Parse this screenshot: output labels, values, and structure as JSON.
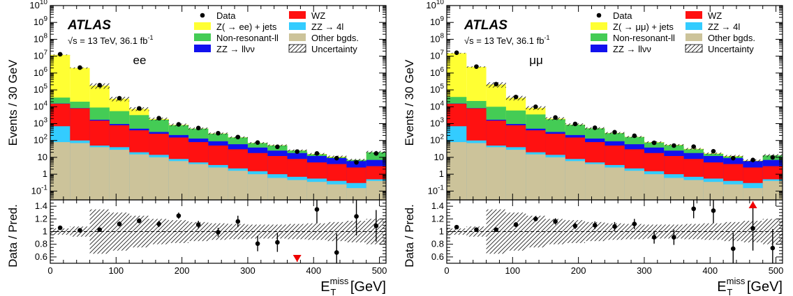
{
  "figure": {
    "atlas_label": "ATLAS",
    "energy_text": "√s = 13 TeV,  36.1 fb",
    "energy_sup": "-1",
    "ylabel_top": "Events / 30 GeV",
    "ylabel_bottom": "Data / Pred.",
    "xlabel_main": "E",
    "xlabel_sup": "miss",
    "xlabel_sub": "T",
    "xlabel_unit": " [GeV]",
    "x_ticks": [
      "0",
      "100",
      "200",
      "300",
      "400",
      "500"
    ],
    "y_ticks_top": [
      {
        "mant": "10",
        "exp": "-1",
        "v": -1
      },
      {
        "mant": "1",
        "exp": "",
        "v": 0
      },
      {
        "mant": "10",
        "exp": "",
        "v": 1
      },
      {
        "mant": "10",
        "exp": "2",
        "v": 2
      },
      {
        "mant": "10",
        "exp": "3",
        "v": 3
      },
      {
        "mant": "10",
        "exp": "4",
        "v": 4
      },
      {
        "mant": "10",
        "exp": "5",
        "v": 5
      },
      {
        "mant": "10",
        "exp": "6",
        "v": 6
      },
      {
        "mant": "10",
        "exp": "7",
        "v": 7
      },
      {
        "mant": "10",
        "exp": "8",
        "v": 8
      },
      {
        "mant": "10",
        "exp": "9",
        "v": 9
      },
      {
        "mant": "10",
        "exp": "10",
        "v": 10
      }
    ],
    "y_ticks_ratio": [
      "0.6",
      "0.8",
      "1",
      "1.2",
      "1.4"
    ],
    "colors": {
      "zjets": "#ffff33",
      "nonres": "#44cc55",
      "zzllvv": "#1111ee",
      "wz": "#ff1111",
      "zz4l": "#33ccff",
      "other": "#ccc39a"
    },
    "legend_shared": {
      "data": "Data",
      "wz": "WZ",
      "zz4l": "ZZ → 4l",
      "nonres": "Non-resonant-ll",
      "other": "Other bgds.",
      "zzllvv": "ZZ → llνν",
      "unc": "Uncertainty"
    }
  },
  "chart_data": [
    {
      "type": "bar",
      "channel": "ee",
      "legend_zjets": "Z( → ee) + jets",
      "title": "",
      "xlabel": "E_T^miss [GeV]",
      "ylabel": "Events / 30 GeV",
      "ylog": true,
      "xlim": [
        0,
        510
      ],
      "ylim": [
        0.03,
        10000000000
      ],
      "bin_edges": [
        0,
        30,
        60,
        90,
        120,
        150,
        180,
        210,
        240,
        270,
        300,
        330,
        360,
        390,
        420,
        450,
        480,
        510
      ],
      "series": [
        {
          "name": "Other bgds.",
          "color_key": "other",
          "values": [
            80,
            70,
            40,
            28,
            15,
            10,
            6,
            4,
            2.5,
            1.6,
            1.0,
            0.6,
            0.45,
            0.35,
            0.25,
            0.15,
            0.4
          ]
        },
        {
          "name": "ZZ → 4l",
          "color_key": "zz4l",
          "values": [
            700,
            100,
            50,
            40,
            20,
            14,
            8,
            5,
            3.5,
            2.2,
            1.5,
            1.0,
            0.7,
            0.55,
            0.4,
            0.3,
            0.5
          ]
        },
        {
          "name": "WZ",
          "color_key": "wz",
          "values": [
            15000,
            8000,
            1500,
            800,
            400,
            250,
            150,
            80,
            50,
            30,
            18,
            12,
            8,
            5,
            4,
            2.5,
            3
          ]
        },
        {
          "name": "ZZ → llνν",
          "color_key": "zzllvv",
          "values": [
            15500,
            8300,
            1700,
            950,
            500,
            320,
            210,
            130,
            90,
            60,
            38,
            25,
            18,
            12,
            9,
            6,
            7
          ]
        },
        {
          "name": "Non-resonant-ll",
          "color_key": "nonres",
          "values": [
            35000,
            20000,
            9000,
            5500,
            3200,
            1700,
            800,
            500,
            250,
            150,
            70,
            50,
            25,
            15,
            10,
            7,
            20
          ]
        },
        {
          "name": "Z( → ee) + jets",
          "color_key": "zjets",
          "values": [
            12000000,
            2000000,
            180000,
            30000,
            7500,
            1900,
            850,
            510,
            260,
            155,
            72,
            52,
            26,
            16,
            11,
            7,
            20
          ]
        }
      ],
      "data_points": [
        13000000,
        2100000,
        190000,
        32000,
        8000,
        2100,
        900,
        550,
        270,
        160,
        75,
        42,
        22,
        17,
        9,
        5,
        17
      ],
      "ratio": {
        "ylim": [
          0.5,
          1.5
        ],
        "values": [
          1.06,
          1.02,
          1.03,
          1.12,
          1.17,
          1.12,
          1.25,
          1.11,
          0.99,
          1.16,
          0.81,
          0.83,
          null,
          1.35,
          0.67,
          1.24,
          1.09
        ],
        "errors": [
          0.02,
          0.02,
          0.03,
          0.04,
          0.04,
          0.05,
          0.05,
          0.06,
          0.07,
          0.09,
          0.12,
          0.15,
          null,
          0.22,
          0.3,
          0.3,
          0.25
        ],
        "unc": [
          0.05,
          0.08,
          0.35,
          0.3,
          0.25,
          0.2,
          0.18,
          0.15,
          0.13,
          0.12,
          0.11,
          0.11,
          0.12,
          0.13,
          0.15,
          0.17,
          0.2
        ],
        "arrows": [
          {
            "x": 375,
            "dir": "down"
          }
        ]
      }
    },
    {
      "type": "bar",
      "channel": "μμ",
      "legend_zjets": "Z( → μμ) + jets",
      "title": "",
      "xlabel": "E_T^miss [GeV]",
      "ylabel": "Events / 30 GeV",
      "ylog": true,
      "xlim": [
        0,
        510
      ],
      "ylim": [
        0.03,
        10000000000
      ],
      "bin_edges": [
        0,
        30,
        60,
        90,
        120,
        150,
        180,
        210,
        240,
        270,
        300,
        330,
        360,
        390,
        420,
        450,
        480,
        510
      ],
      "series": [
        {
          "name": "Other bgds.",
          "color_key": "other",
          "values": [
            80,
            70,
            40,
            28,
            15,
            10,
            6,
            4,
            2.5,
            1.6,
            1.0,
            0.6,
            0.45,
            0.35,
            0.25,
            0.15,
            0.4
          ]
        },
        {
          "name": "ZZ → 4l",
          "color_key": "zz4l",
          "values": [
            700,
            100,
            50,
            40,
            20,
            14,
            8,
            5,
            3.5,
            2.2,
            1.5,
            1.0,
            0.7,
            0.55,
            0.4,
            0.3,
            0.5
          ]
        },
        {
          "name": "WZ",
          "color_key": "wz",
          "values": [
            15000,
            8000,
            1500,
            800,
            400,
            250,
            150,
            80,
            50,
            30,
            18,
            12,
            8,
            5,
            4,
            2.5,
            3
          ]
        },
        {
          "name": "ZZ → llνν",
          "color_key": "zzllvv",
          "values": [
            15500,
            8300,
            1700,
            950,
            500,
            320,
            210,
            130,
            90,
            60,
            38,
            25,
            18,
            12,
            9,
            6,
            7
          ]
        },
        {
          "name": "Non-resonant-ll",
          "color_key": "nonres",
          "values": [
            38000,
            22000,
            10000,
            6000,
            3500,
            1800,
            850,
            520,
            270,
            160,
            75,
            52,
            30,
            16,
            11,
            6,
            13
          ]
        },
        {
          "name": "Z( → μμ) + jets",
          "color_key": "zjets",
          "values": [
            15000000,
            2300000,
            210000,
            34000,
            8600,
            2000,
            880,
            530,
            280,
            165,
            80,
            55,
            32,
            17,
            12,
            6.5,
            13
          ]
        }
      ],
      "data_points": [
        16000000,
        2400000,
        220000,
        38000,
        10000,
        2300,
        960,
        570,
        310,
        190,
        73,
        50,
        43,
        23,
        9,
        7,
        10
      ],
      "ratio": {
        "ylim": [
          0.5,
          1.5
        ],
        "values": [
          1.07,
          1.03,
          1.03,
          1.11,
          1.2,
          1.16,
          1.09,
          1.1,
          1.08,
          1.12,
          0.91,
          0.91,
          1.36,
          1.33,
          0.73,
          1.05,
          0.74
        ],
        "errors": [
          0.02,
          0.02,
          0.03,
          0.04,
          0.04,
          0.05,
          0.05,
          0.06,
          0.07,
          0.08,
          0.1,
          0.12,
          0.15,
          0.2,
          0.25,
          0.35,
          0.3
        ],
        "unc": [
          0.05,
          0.08,
          0.35,
          0.3,
          0.25,
          0.2,
          0.18,
          0.15,
          0.13,
          0.12,
          0.11,
          0.11,
          0.12,
          0.13,
          0.15,
          0.17,
          0.2
        ],
        "arrows": [
          {
            "x": 465,
            "dir": "up"
          }
        ]
      }
    }
  ]
}
